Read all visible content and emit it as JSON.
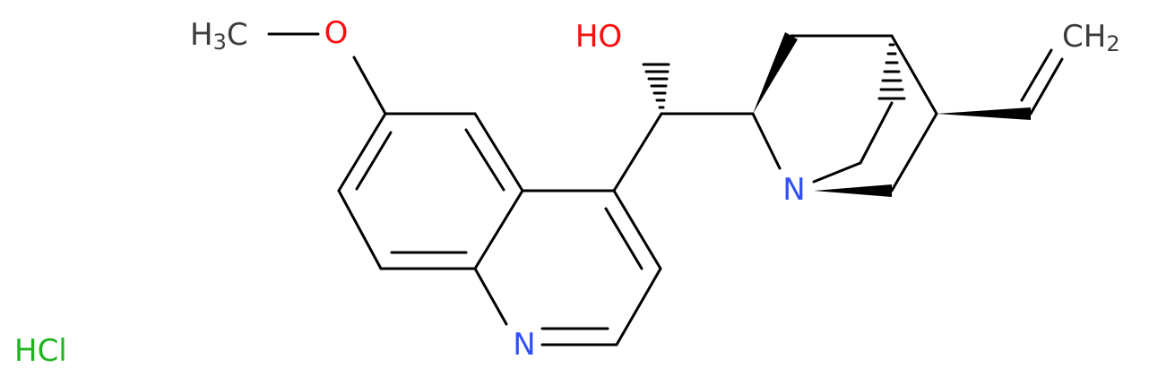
{
  "atoms": [
    "H3C",
    "O",
    "HO",
    "N",
    "N",
    "CH2",
    "HCl"
  ]
}
